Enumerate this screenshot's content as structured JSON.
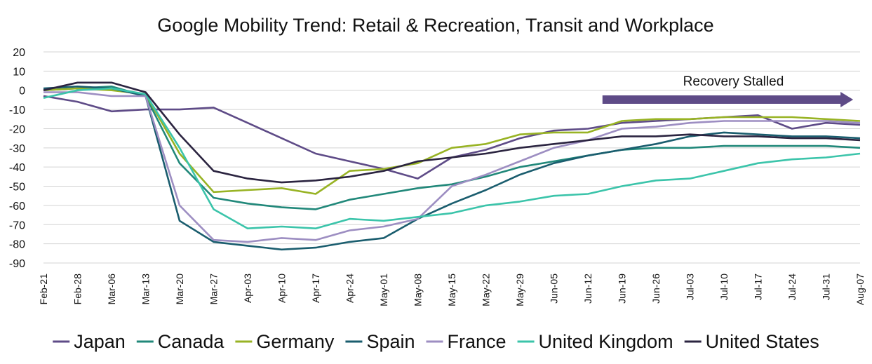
{
  "chart_data": {
    "type": "line",
    "title": "Google Mobility Trend: Retail & Recreation, Transit and Workplace",
    "xlabel": "",
    "ylabel": "",
    "ylim": [
      -90,
      20
    ],
    "yticks": [
      20,
      10,
      0,
      -10,
      -20,
      -30,
      -40,
      -50,
      -60,
      -70,
      -80,
      -90
    ],
    "grid": true,
    "legend_position": "bottom",
    "categories": [
      "Feb-21",
      "Feb-28",
      "Mar-06",
      "Mar-13",
      "Mar-20",
      "Mar-27",
      "Apr-03",
      "Apr-10",
      "Apr-17",
      "Apr-24",
      "May-01",
      "May-08",
      "May-15",
      "May-22",
      "May-29",
      "Jun-05",
      "Jun-12",
      "Jun-19",
      "Jun-26",
      "Jul-03",
      "Jul-10",
      "Jul-17",
      "Jul-24",
      "Jul-31",
      "Aug-07"
    ],
    "annotation": {
      "text": "Recovery Stalled",
      "arrow_from": "Jun-15",
      "arrow_to": "Aug-05",
      "color": "#5e4b87"
    },
    "series": [
      {
        "name": "Japan",
        "color": "#5e4b87",
        "values": [
          -3,
          -6,
          -11,
          -10,
          -10,
          -9,
          -17,
          -25,
          -33,
          -37,
          -41,
          -46,
          -35,
          -31,
          -25,
          -21,
          -20,
          -17,
          -16,
          -15,
          -14,
          -13,
          -20,
          -17,
          -18
        ]
      },
      {
        "name": "Canada",
        "color": "#21887a",
        "values": [
          0,
          1,
          2,
          -3,
          -38,
          -56,
          -59,
          -61,
          -62,
          -57,
          -54,
          -51,
          -49,
          -45,
          -40,
          -37,
          -34,
          -31,
          -30,
          -30,
          -29,
          -29,
          -29,
          -29,
          -30
        ]
      },
      {
        "name": "Germany",
        "color": "#98b324",
        "values": [
          0,
          1,
          0,
          -2,
          -33,
          -53,
          -52,
          -51,
          -54,
          -42,
          -41,
          -38,
          -30,
          -28,
          -23,
          -22,
          -22,
          -16,
          -15,
          -15,
          -14,
          -14,
          -14,
          -15,
          -16
        ]
      },
      {
        "name": "Spain",
        "color": "#1a5d6e",
        "values": [
          1,
          2,
          1,
          -3,
          -68,
          -79,
          -81,
          -83,
          -82,
          -79,
          -77,
          -67,
          -59,
          -52,
          -44,
          -38,
          -34,
          -31,
          -28,
          -24,
          -22,
          -23,
          -24,
          -24,
          -25
        ]
      },
      {
        "name": "France",
        "color": "#9d8ec2",
        "values": [
          -1,
          -1,
          -3,
          -3,
          -60,
          -78,
          -79,
          -77,
          -78,
          -73,
          -71,
          -67,
          -50,
          -44,
          -37,
          -30,
          -26,
          -20,
          -19,
          -17,
          -16,
          -16,
          -16,
          -16,
          -17
        ]
      },
      {
        "name": "United Kingdom",
        "color": "#3bc4aa",
        "values": [
          -4,
          0,
          1,
          -2,
          -30,
          -62,
          -72,
          -71,
          -72,
          -67,
          -68,
          -66,
          -64,
          -60,
          -58,
          -55,
          -54,
          -50,
          -47,
          -46,
          -42,
          -38,
          -36,
          -35,
          -33
        ]
      },
      {
        "name": "United States",
        "color": "#2b2440",
        "values": [
          0,
          4,
          4,
          -1,
          -23,
          -42,
          -46,
          -48,
          -47,
          -45,
          -42,
          -37,
          -35,
          -33,
          -30,
          -28,
          -26,
          -24,
          -24,
          -23,
          -24,
          -24,
          -25,
          -25,
          -26
        ]
      }
    ]
  }
}
